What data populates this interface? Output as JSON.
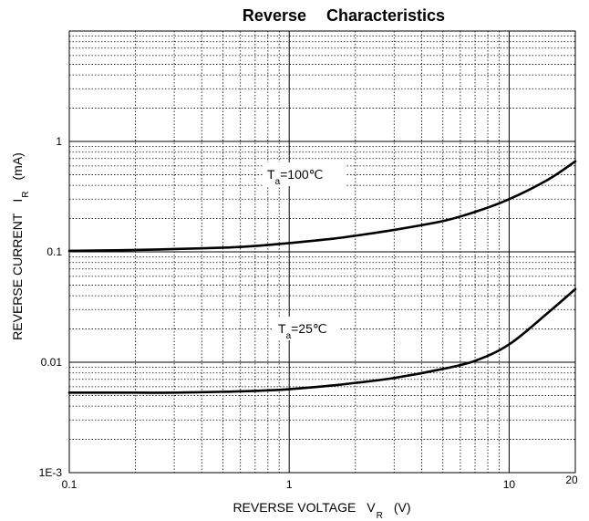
{
  "chart_data": {
    "type": "line",
    "title_part1": "Reverse",
    "title_part2": "Characteristics",
    "xlabel": "REVERSE VOLTAGE",
    "xlabel_symbol": "V",
    "xlabel_subscript": "R",
    "xlabel_unit": "(V)",
    "ylabel": "REVERSE CURRENT",
    "ylabel_symbol": "I",
    "ylabel_subscript": "R",
    "ylabel_unit": "(mA)",
    "x_scale": "log",
    "y_scale": "log",
    "xlim": [
      0.1,
      20
    ],
    "ylim": [
      0.001,
      10
    ],
    "grid": true,
    "x_ticks": [
      {
        "value": 0.1,
        "label": "0.1"
      },
      {
        "value": 1,
        "label": "1"
      },
      {
        "value": 10,
        "label": "10"
      },
      {
        "value": 20,
        "label": "20"
      }
    ],
    "y_ticks": [
      {
        "value": 0.001,
        "label": "1E-3"
      },
      {
        "value": 0.01,
        "label": "0.01"
      },
      {
        "value": 0.1,
        "label": "0.1"
      },
      {
        "value": 1,
        "label": "1"
      }
    ],
    "series": [
      {
        "annotation_main": "T",
        "annotation_sub": "a",
        "annotation_rest": "=100℃",
        "color": "#000000",
        "x": [
          0.1,
          0.2,
          0.3,
          0.5,
          0.7,
          1,
          1.5,
          2,
          3,
          5,
          7,
          10,
          15,
          20
        ],
        "y": [
          0.102,
          0.104,
          0.106,
          0.109,
          0.113,
          0.12,
          0.13,
          0.14,
          0.158,
          0.19,
          0.23,
          0.3,
          0.45,
          0.66
        ]
      },
      {
        "annotation_main": "T",
        "annotation_sub": "a",
        "annotation_rest": "=25℃",
        "color": "#000000",
        "x": [
          0.1,
          0.2,
          0.3,
          0.5,
          0.7,
          1,
          1.5,
          2,
          3,
          5,
          7,
          10,
          15,
          20
        ],
        "y": [
          0.0053,
          0.0053,
          0.0053,
          0.0054,
          0.0055,
          0.0057,
          0.0061,
          0.0065,
          0.0072,
          0.0087,
          0.0103,
          0.0145,
          0.028,
          0.046
        ]
      }
    ]
  }
}
